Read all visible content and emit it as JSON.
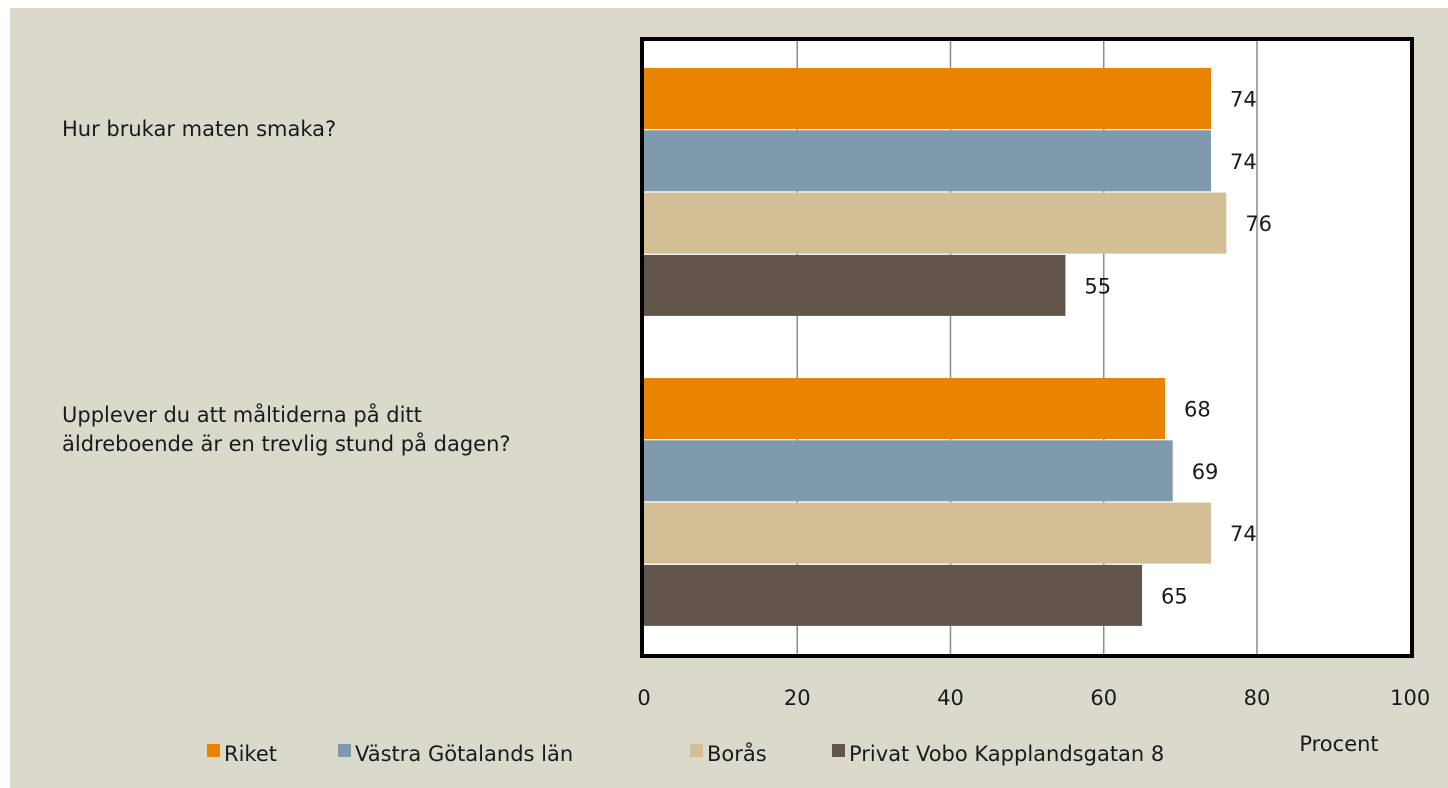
{
  "chart_data": {
    "type": "bar",
    "orientation": "horizontal",
    "categories": [
      "Hur brukar maten smaka?",
      "Upplever du att måltiderna på ditt äldreboende är en trevlig stund på dagen?"
    ],
    "series": [
      {
        "name": "Riket",
        "color": "#e98300",
        "values": [
          74,
          68
        ]
      },
      {
        "name": "Västra Götalands län",
        "color": "#7f9aac",
        "values": [
          74,
          69
        ]
      },
      {
        "name": "Borås",
        "color": "#d3bf96",
        "values": [
          76,
          74
        ]
      },
      {
        "name": "Privat Vobo Kapplandsgatan 8",
        "color": "#62554a",
        "values": [
          55,
          65
        ]
      }
    ],
    "xlabel": "Procent",
    "xlim": [
      0,
      100
    ],
    "xticks": [
      "0",
      "20",
      "40",
      "60",
      "80",
      "100"
    ],
    "data_labels": true,
    "grid": "vertical",
    "legend_position": "bottom"
  }
}
